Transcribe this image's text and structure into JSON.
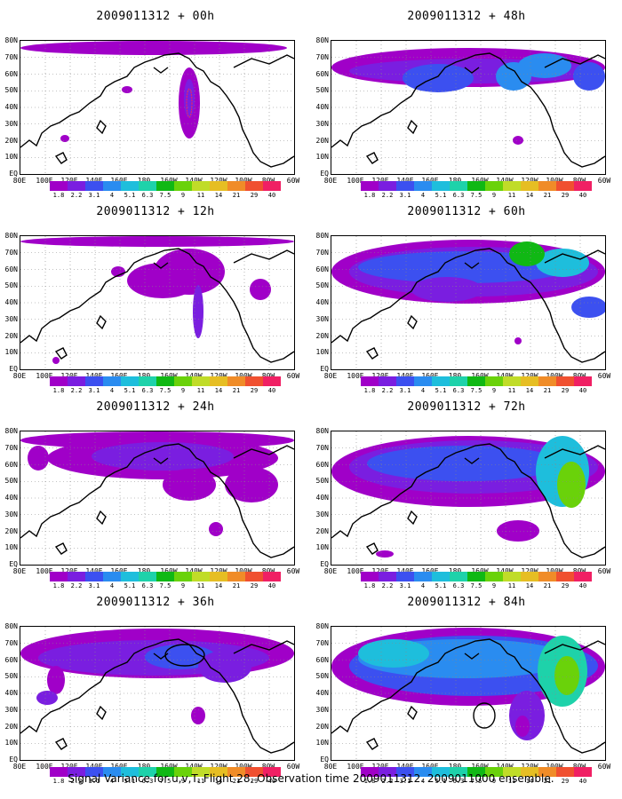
{
  "panels": [
    {
      "title": "2009011312 + 00h"
    },
    {
      "title": "2009011312 + 48h"
    },
    {
      "title": "2009011312 + 12h"
    },
    {
      "title": "2009011312 + 60h"
    },
    {
      "title": "2009011312 + 24h"
    },
    {
      "title": "2009011312 + 72h"
    },
    {
      "title": "2009011312 + 36h"
    },
    {
      "title": "2009011312 + 84h"
    }
  ],
  "lat_labels": [
    "80N",
    "70N",
    "60N",
    "50N",
    "40N",
    "30N",
    "20N",
    "10N",
    "EQ"
  ],
  "lon_labels": [
    "80E",
    "100E",
    "120E",
    "140E",
    "160E",
    "180",
    "160W",
    "140W",
    "120W",
    "100W",
    "80W",
    "60W"
  ],
  "colorbar_labels": [
    "1.8",
    "2.2",
    "3.1",
    "4",
    "5.1",
    "6.3",
    "7.5",
    "9",
    "11",
    "14",
    "21",
    "29",
    "40"
  ],
  "colorbar_colors": [
    "#a000c8",
    "#7a1ee0",
    "#3c50f0",
    "#2a8cf0",
    "#1ebedc",
    "#1ed2aa",
    "#10b814",
    "#6ad20a",
    "#c0dc28",
    "#e6be23",
    "#f08c28",
    "#f05030",
    "#f02064"
  ],
  "footer": "Signal Variance for u,v,T. Flight 28. Observation time 2009011312. 2009011000 ensemble."
}
